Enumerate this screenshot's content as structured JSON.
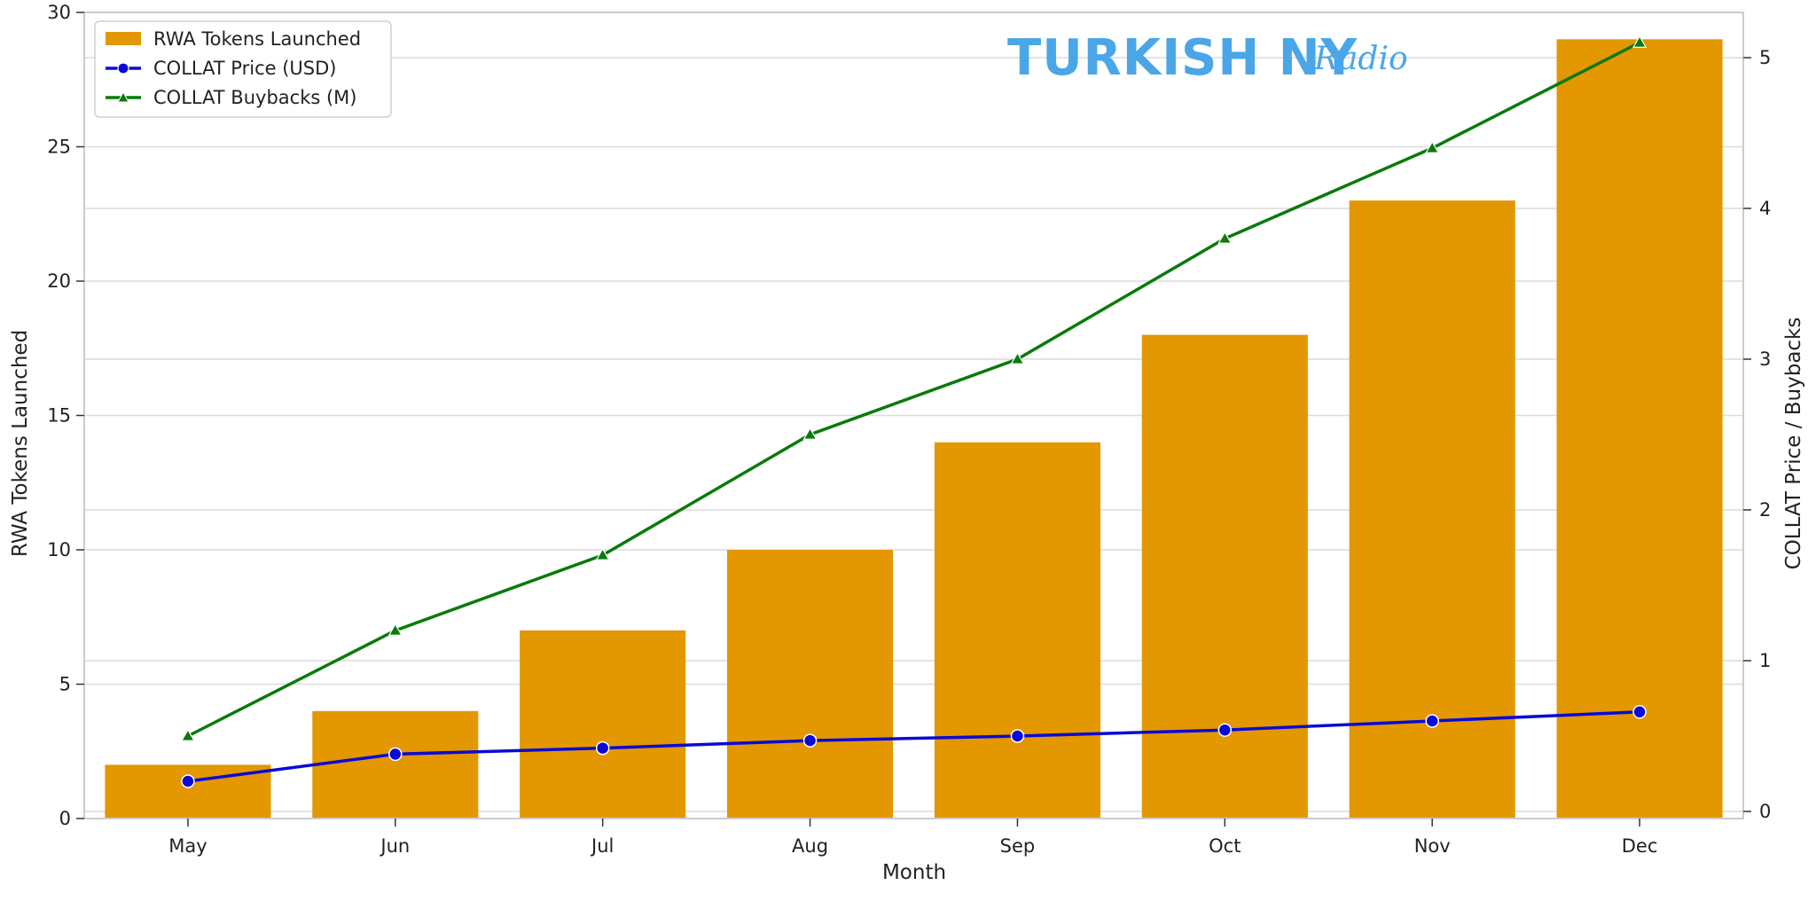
{
  "chart_data": {
    "type": "bar",
    "title": "",
    "xlabel": "Month",
    "ylabel": "RWA Tokens Launched",
    "y2label": "COLLAT Price / Buybacks",
    "categories": [
      "May",
      "Jun",
      "Jul",
      "Aug",
      "Sep",
      "Oct",
      "Nov",
      "Dec"
    ],
    "ylim": [
      0,
      30
    ],
    "y2lim": [
      0,
      5.3
    ],
    "yticks": [
      "0",
      "5",
      "10",
      "15",
      "20",
      "25",
      "30"
    ],
    "y2ticks": [
      "0",
      "1",
      "2",
      "3",
      "4",
      "5"
    ],
    "grid": true,
    "legend_position": "top-left",
    "series": [
      {
        "name": "RWA Tokens Launched",
        "type": "bar",
        "axis": "left",
        "color": "#e39700",
        "values": [
          2,
          4,
          7,
          10,
          14,
          18,
          23,
          29
        ]
      },
      {
        "name": "COLLAT Price (USD)",
        "type": "line",
        "axis": "right",
        "marker": "circle",
        "color": "#0a0ad6",
        "values": [
          0.2,
          0.38,
          0.42,
          0.47,
          0.5,
          0.54,
          0.6,
          0.66
        ]
      },
      {
        "name": "COLLAT Buybacks (M)",
        "type": "line",
        "axis": "right",
        "marker": "triangle",
        "color": "#0a7a0a",
        "values": [
          0.5,
          1.2,
          1.7,
          2.5,
          3.0,
          3.8,
          4.4,
          5.1
        ]
      }
    ]
  },
  "watermark": {
    "text_main": "TURKISH NY",
    "text_script": "Radio",
    "color": "#4aa6e6"
  }
}
